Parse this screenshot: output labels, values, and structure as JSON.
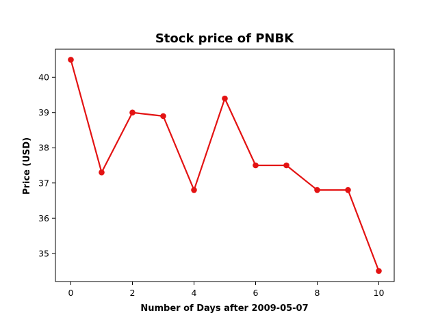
{
  "chart_data": {
    "type": "line",
    "title": "Stock price of PNBK",
    "xlabel": "Number of Days after 2009-05-07",
    "ylabel": "Price (USD)",
    "x": [
      0,
      1,
      2,
      3,
      4,
      5,
      6,
      7,
      8,
      9,
      10
    ],
    "series": [
      {
        "values": [
          40.5,
          37.3,
          39.0,
          38.9,
          36.8,
          39.4,
          37.5,
          37.5,
          36.8,
          36.8,
          34.5
        ]
      }
    ],
    "xlim": [
      -0.5,
      10.5
    ],
    "ylim": [
      34.2,
      40.8
    ],
    "xticks": [
      0,
      2,
      4,
      6,
      8,
      10
    ],
    "yticks": [
      35,
      36,
      37,
      38,
      39,
      40
    ],
    "grid": false,
    "line_color": "#e31313"
  }
}
